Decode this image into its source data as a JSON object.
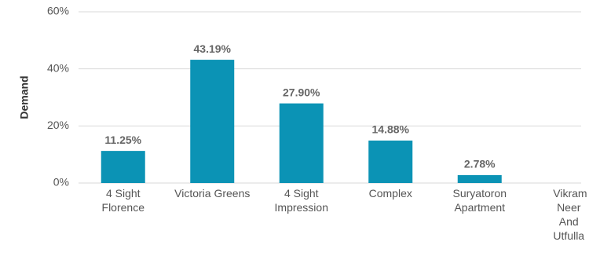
{
  "chart_data": {
    "type": "bar",
    "y_label": "Demand",
    "categories": [
      "4 Sight Florence",
      "Victoria Greens",
      "4 Sight Impression",
      "Complex",
      "Suryatoron Apartment",
      "Vikram Neer And Utfulla"
    ],
    "values": [
      11.25,
      43.19,
      27.9,
      14.88,
      2.78,
      0
    ],
    "value_labels": [
      "11.25%",
      "43.19%",
      "27.90%",
      "14.88%",
      "2.78%",
      null
    ],
    "color": "#0b93b5",
    "ylim": [
      0,
      60
    ],
    "yticks": [
      {
        "value": 0,
        "label": "0%"
      },
      {
        "value": 20,
        "label": "20%"
      },
      {
        "value": 40,
        "label": "40%"
      },
      {
        "value": 60,
        "label": "60%"
      }
    ],
    "grid": true
  }
}
